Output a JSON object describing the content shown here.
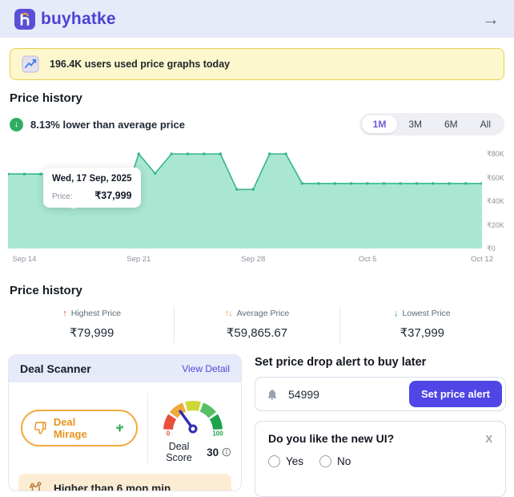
{
  "header": {
    "brand": "buyhatke",
    "arrow_icon": "→"
  },
  "banner": {
    "text": "196.4K users used price graphs today"
  },
  "price_history": {
    "title": "Price history",
    "insight": "8.13% lower than average price",
    "insight_icon": "↓",
    "tabs": [
      {
        "label": "1M",
        "active": true
      },
      {
        "label": "3M",
        "active": false
      },
      {
        "label": "6M",
        "active": false
      },
      {
        "label": "All",
        "active": false
      }
    ]
  },
  "chart_data": {
    "type": "area",
    "title": "Price history (1M)",
    "x": [
      "Sep 13",
      "Sep 14",
      "Sep 15",
      "Sep 16",
      "Sep 17",
      "Sep 18",
      "Sep 19",
      "Sep 20",
      "Sep 21",
      "Sep 22",
      "Sep 23",
      "Sep 24",
      "Sep 25",
      "Sep 26",
      "Sep 27",
      "Sep 28",
      "Sep 29",
      "Sep 30",
      "Oct 1",
      "Oct 2",
      "Oct 3",
      "Oct 4",
      "Oct 5",
      "Oct 6",
      "Oct 7",
      "Oct 8",
      "Oct 9",
      "Oct 10",
      "Oct 11",
      "Oct 12"
    ],
    "values": [
      63000,
      63000,
      63000,
      63000,
      37999,
      37999,
      37999,
      37999,
      79999,
      63500,
      79999,
      79999,
      79999,
      79999,
      50000,
      50000,
      79999,
      79999,
      54999,
      54999,
      54999,
      54999,
      54999,
      54999,
      54999,
      54999,
      54999,
      54999,
      54999,
      54999
    ],
    "ylim": [
      0,
      80000
    ],
    "x_tick_labels": [
      "Sep 14",
      "Sep 21",
      "Sep 28",
      "Oct 5",
      "Oct 12"
    ],
    "y_ticks": [
      {
        "label": "₹80K",
        "value": 80000
      },
      {
        "label": "₹60K",
        "value": 60000
      },
      {
        "label": "₹40K",
        "value": 40000
      },
      {
        "label": "₹20K",
        "value": 20000
      },
      {
        "label": "₹0",
        "value": 0
      }
    ],
    "line_color": "#35b789",
    "fill_color": "#a9e7d2",
    "grid": false,
    "legend": false,
    "tooltip": {
      "date": "Wed, 17 Sep, 2025",
      "price_label": "Price:",
      "price": "₹37,999",
      "point_index": 4
    }
  },
  "stats": {
    "title": "Price history",
    "items": [
      {
        "icon": "↑",
        "label": "Highest Price",
        "value": "₹79,999",
        "color": "#e04b3b"
      },
      {
        "icon": "↑↓",
        "label": "Average Price",
        "value": "₹59,865.67",
        "color": "#f0903a"
      },
      {
        "icon": "↓",
        "label": "Lowest Price",
        "value": "₹37,999",
        "color": "#22a455"
      }
    ]
  },
  "deal_scanner": {
    "title": "Deal Scanner",
    "view_detail": "View Detail",
    "verdict": "Deal Mirage",
    "gauge": {
      "score": 30,
      "score_label": "Deal Score",
      "min_label": "0",
      "max_label": "100",
      "segment_colors": [
        "#e8503c",
        "#f2a93b",
        "#ccd836",
        "#57c065",
        "#1ea34c"
      ],
      "needle_color": "#2d2db5",
      "min_color": "#e8503c",
      "max_color": "#1ea34c"
    },
    "note": "Higher than 6 mon min"
  },
  "alert": {
    "heading": "Set price drop alert to buy later",
    "input_value": "54999",
    "button": "Set price alert",
    "button_color": "#4f46e5"
  },
  "survey": {
    "question": "Do you like the new UI?",
    "close": "X",
    "options": [
      "Yes",
      "No"
    ]
  }
}
